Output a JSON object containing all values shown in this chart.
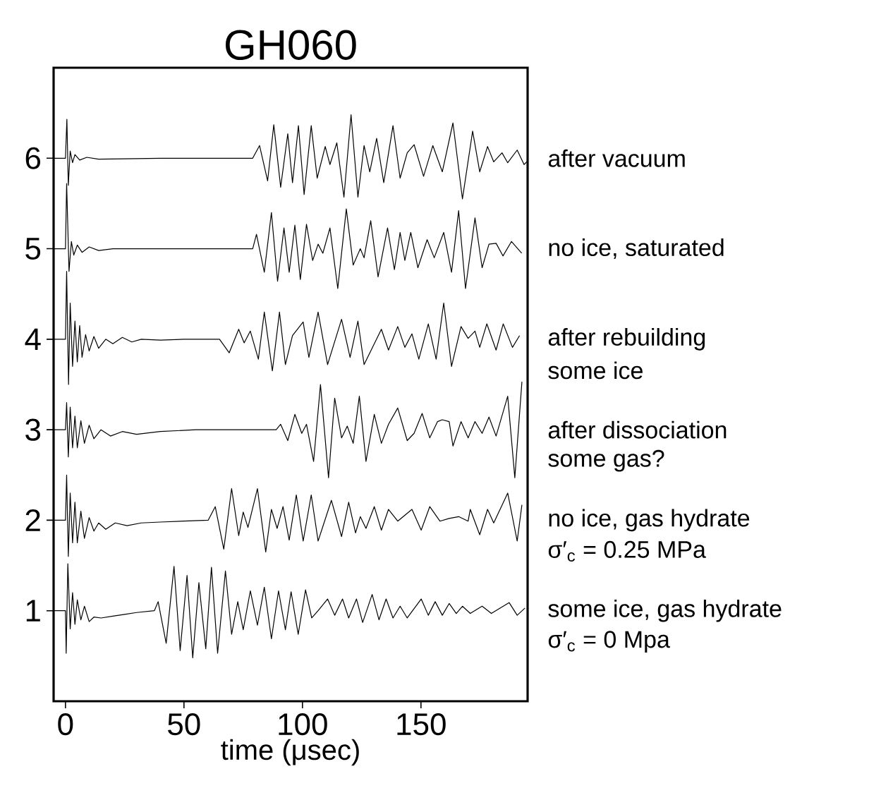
{
  "chart_data": {
    "type": "line",
    "title": "GH060",
    "xlabel": "time (μsec)",
    "xlim": [
      -5,
      195
    ],
    "ylim": [
      0,
      7
    ],
    "xticks": [
      0,
      50,
      100,
      150
    ],
    "yticks": [
      1,
      2,
      3,
      4,
      5,
      6
    ],
    "legend": false,
    "series": [
      {
        "name": "after vacuum",
        "color": "#000000",
        "x": [
          -5,
          0,
          0.6,
          1.2,
          2,
          3,
          4,
          6,
          9,
          14,
          40,
          79,
          81.9,
          85.3,
          87.9,
          90.8,
          93.8,
          95.8,
          98.3,
          100.7,
          103.7,
          106.2,
          109.6,
          111.6,
          114.5,
          117.5,
          120.5,
          123.4,
          126,
          128.4,
          131.3,
          134.3,
          138.2,
          141.2,
          144.2,
          147.1,
          151.1,
          155,
          159,
          163.5,
          167.5,
          171.8,
          174.8,
          178.1,
          180.7,
          184.2,
          186.6,
          190.6,
          193.5,
          195
        ],
        "values": [
          6,
          6,
          6.43,
          5.7,
          6.08,
          5.95,
          6.04,
          5.98,
          6.01,
          5.99,
          6,
          6,
          6.14,
          5.75,
          6.37,
          5.68,
          6.27,
          5.73,
          6.36,
          5.6,
          6.36,
          5.78,
          6.13,
          5.93,
          6.17,
          5.57,
          6.48,
          5.57,
          6.14,
          5.85,
          6.22,
          5.73,
          6.36,
          5.78,
          6.06,
          6.15,
          5.8,
          6.14,
          5.85,
          6.39,
          5.55,
          6.3,
          5.85,
          6.13,
          5.96,
          6.06,
          5.95,
          6.09,
          5.93,
          5.97
        ]
      },
      {
        "name": "no ice, saturated",
        "color": "#000000",
        "x": [
          -5,
          0,
          0.5,
          1.5,
          2.5,
          3.5,
          5,
          7,
          10,
          14,
          20,
          79,
          80.6,
          83.9,
          86.9,
          89.5,
          92.2,
          94.4,
          96.8,
          99.1,
          101.7,
          104.3,
          106.6,
          108.6,
          111.6,
          114.9,
          118.5,
          121.4,
          124.4,
          126,
          128.8,
          131.9,
          135.9,
          138.8,
          141.2,
          143.2,
          145.7,
          148.7,
          152.6,
          155.6,
          159.6,
          162.9,
          165.9,
          168.8,
          172.8,
          175.8,
          178.7,
          181.7,
          184.6,
          188.2,
          192.5
        ],
        "values": [
          5,
          5,
          5.72,
          4.75,
          5.08,
          4.93,
          5.04,
          4.96,
          5.02,
          4.98,
          5,
          5,
          5.16,
          4.74,
          5.4,
          4.64,
          5.23,
          4.74,
          5.26,
          4.66,
          5.27,
          4.87,
          5.05,
          4.95,
          5.23,
          4.56,
          5.44,
          4.82,
          5,
          4.9,
          5.31,
          4.69,
          5.23,
          4.77,
          5.18,
          4.87,
          5.18,
          4.79,
          5.1,
          4.9,
          5.18,
          4.74,
          5.42,
          4.56,
          5.34,
          4.79,
          5.05,
          5.06,
          4.92,
          5.08,
          4.95
        ]
      },
      {
        "name": "after rebuilding",
        "color": "#000000",
        "x": [
          -5,
          0,
          0.5,
          1.3,
          2,
          3,
          4,
          5,
          6,
          7,
          8.5,
          10,
          12,
          14,
          17,
          20,
          24,
          28,
          32,
          40,
          50,
          65,
          69.1,
          73.1,
          75.4,
          78,
          81.4,
          83.9,
          87.3,
          90.3,
          92.8,
          95.8,
          100.3,
          102.7,
          106.6,
          110.6,
          116.5,
          120.1,
          123.4,
          126,
          133.3,
          136.3,
          140.2,
          143.2,
          146.2,
          149.1,
          153.1,
          156.4,
          159.6,
          162.9,
          166.9,
          169.9,
          172.8,
          174.8,
          177.8,
          181.7,
          184.7,
          188.6,
          191.6
        ],
        "values": [
          4,
          4,
          4.75,
          3.5,
          4.4,
          3.7,
          4.2,
          3.75,
          4.15,
          3.8,
          4.05,
          3.87,
          4.03,
          3.9,
          4,
          3.95,
          4.02,
          3.97,
          4,
          3.99,
          4,
          4,
          3.85,
          4.11,
          3.96,
          4.09,
          3.78,
          4.3,
          3.65,
          4.3,
          3.72,
          4.04,
          4.19,
          3.8,
          4.3,
          3.72,
          4.22,
          3.8,
          4.2,
          3.72,
          4.11,
          3.88,
          4.14,
          3.91,
          4.06,
          3.78,
          4.17,
          3.78,
          4.4,
          3.7,
          4.14,
          4.01,
          4.09,
          3.91,
          4.17,
          3.88,
          4.17,
          3.91,
          4.04
        ]
      },
      {
        "name": "after dissociation",
        "color": "#000000",
        "x": [
          -5,
          0,
          0.5,
          1.2,
          2,
          3,
          4,
          5,
          6.5,
          8,
          10,
          12,
          15,
          19,
          24,
          30,
          40,
          55,
          88.9,
          90.8,
          93.8,
          96.8,
          99.7,
          101.7,
          104.7,
          107.6,
          111,
          113.6,
          116.5,
          118.9,
          121.4,
          124,
          126.8,
          130.3,
          133.3,
          136.3,
          140.2,
          144.2,
          147.1,
          150.5,
          153.7,
          157,
          159,
          161.9,
          163.5,
          166.9,
          169.9,
          172.8,
          175.8,
          178.7,
          181.7,
          186.6,
          189.6,
          192.6
        ],
        "values": [
          3,
          3,
          3.3,
          2.7,
          3.25,
          2.8,
          3.15,
          2.8,
          3.1,
          2.85,
          3.05,
          2.9,
          3,
          2.93,
          2.98,
          2.95,
          2.98,
          3,
          3,
          3.06,
          2.88,
          3.17,
          2.96,
          3.06,
          2.65,
          3.5,
          2.47,
          3.35,
          2.91,
          3.04,
          2.85,
          3.37,
          2.65,
          3.17,
          2.85,
          3.06,
          3.24,
          2.88,
          2.96,
          3.18,
          2.91,
          3.09,
          3.11,
          3.09,
          2.82,
          3.09,
          2.91,
          3.09,
          2.96,
          3.14,
          2.93,
          3.37,
          2.47,
          3.53
        ]
      },
      {
        "name": "no ice, gas hydrate",
        "color": "#000000",
        "x": [
          -5,
          0,
          0.5,
          1.2,
          2,
          3,
          4,
          5,
          6.5,
          8,
          10,
          12,
          14,
          17,
          21,
          26,
          32,
          40,
          50,
          60.2,
          63.2,
          66.8,
          70.1,
          73.1,
          75,
          77,
          81,
          84.5,
          86.9,
          89.3,
          91.8,
          94.4,
          97.4,
          100.3,
          103.7,
          106.6,
          112.2,
          116.5,
          119.5,
          122.4,
          124.4,
          126.8,
          130.3,
          133.3,
          136.3,
          140.2,
          146.2,
          150.1,
          153.7,
          158,
          161.9,
          165.9,
          169.9,
          170.8,
          174.8,
          178.1,
          180.7,
          186.6,
          190.6,
          192.6
        ],
        "values": [
          2,
          2,
          2.5,
          1.6,
          2.3,
          1.75,
          2.2,
          1.75,
          2.1,
          1.8,
          2.03,
          1.88,
          1.97,
          1.9,
          1.97,
          1.94,
          1.97,
          1.98,
          1.99,
          2,
          2.15,
          1.68,
          2.35,
          1.83,
          2.09,
          1.92,
          2.35,
          1.65,
          2.12,
          1.91,
          2.15,
          1.78,
          2.28,
          1.77,
          2.28,
          1.77,
          2.22,
          1.82,
          2.2,
          1.86,
          2.04,
          1.91,
          2.15,
          1.89,
          2.12,
          1.99,
          2.12,
          1.89,
          2.15,
          1.99,
          2.02,
          2.04,
          1.99,
          2.12,
          1.84,
          2.12,
          1.97,
          2.3,
          1.77,
          2.17
        ]
      },
      {
        "name": "some ice, gas hydrate",
        "color": "#000000",
        "x": [
          -5,
          0,
          0.3,
          1,
          2,
          3,
          4,
          5,
          6.5,
          8,
          10,
          12,
          15,
          20,
          25,
          30,
          37.5,
          39.1,
          42.5,
          45.8,
          48.4,
          51.3,
          53.7,
          56.3,
          59.2,
          61.6,
          64.2,
          67.5,
          70.1,
          72.7,
          75,
          78,
          81,
          83.9,
          86.9,
          89.9,
          92.8,
          95.2,
          98.2,
          101.3,
          103.9,
          106.6,
          110.6,
          113.6,
          116.9,
          119.5,
          122.8,
          125.4,
          129.4,
          132.3,
          135.3,
          138.2,
          141.2,
          144.2,
          150.1,
          153.1,
          156,
          159,
          161.9,
          164.9,
          167.5,
          170.8,
          175.8,
          179.7,
          187.2,
          190.6,
          193.9
        ],
        "values": [
          1,
          1,
          0.53,
          1.52,
          0.8,
          1.2,
          0.85,
          1.12,
          0.9,
          1.05,
          0.88,
          0.93,
          0.92,
          0.94,
          0.96,
          0.98,
          1,
          1.1,
          0.64,
          1.49,
          0.56,
          1.39,
          0.48,
          1.31,
          0.58,
          1.48,
          0.53,
          1.44,
          0.74,
          1.1,
          0.79,
          1.22,
          0.84,
          1.26,
          0.69,
          1.22,
          0.79,
          1.21,
          0.74,
          1.23,
          0.92,
          1,
          1.13,
          0.95,
          1.13,
          0.92,
          1.13,
          0.87,
          1.18,
          0.9,
          1.13,
          0.92,
          1.05,
          0.92,
          1.13,
          0.95,
          1.1,
          0.95,
          1.08,
          0.97,
          1.05,
          0.97,
          1.05,
          0.97,
          1.09,
          0.95,
          1.03
        ]
      }
    ],
    "annotations": [
      "some ice",
      "some gas?",
      "σ′$_{c}$ = 0.25 MPa",
      "σ′$_{c}$ = 0 Mpa"
    ]
  }
}
